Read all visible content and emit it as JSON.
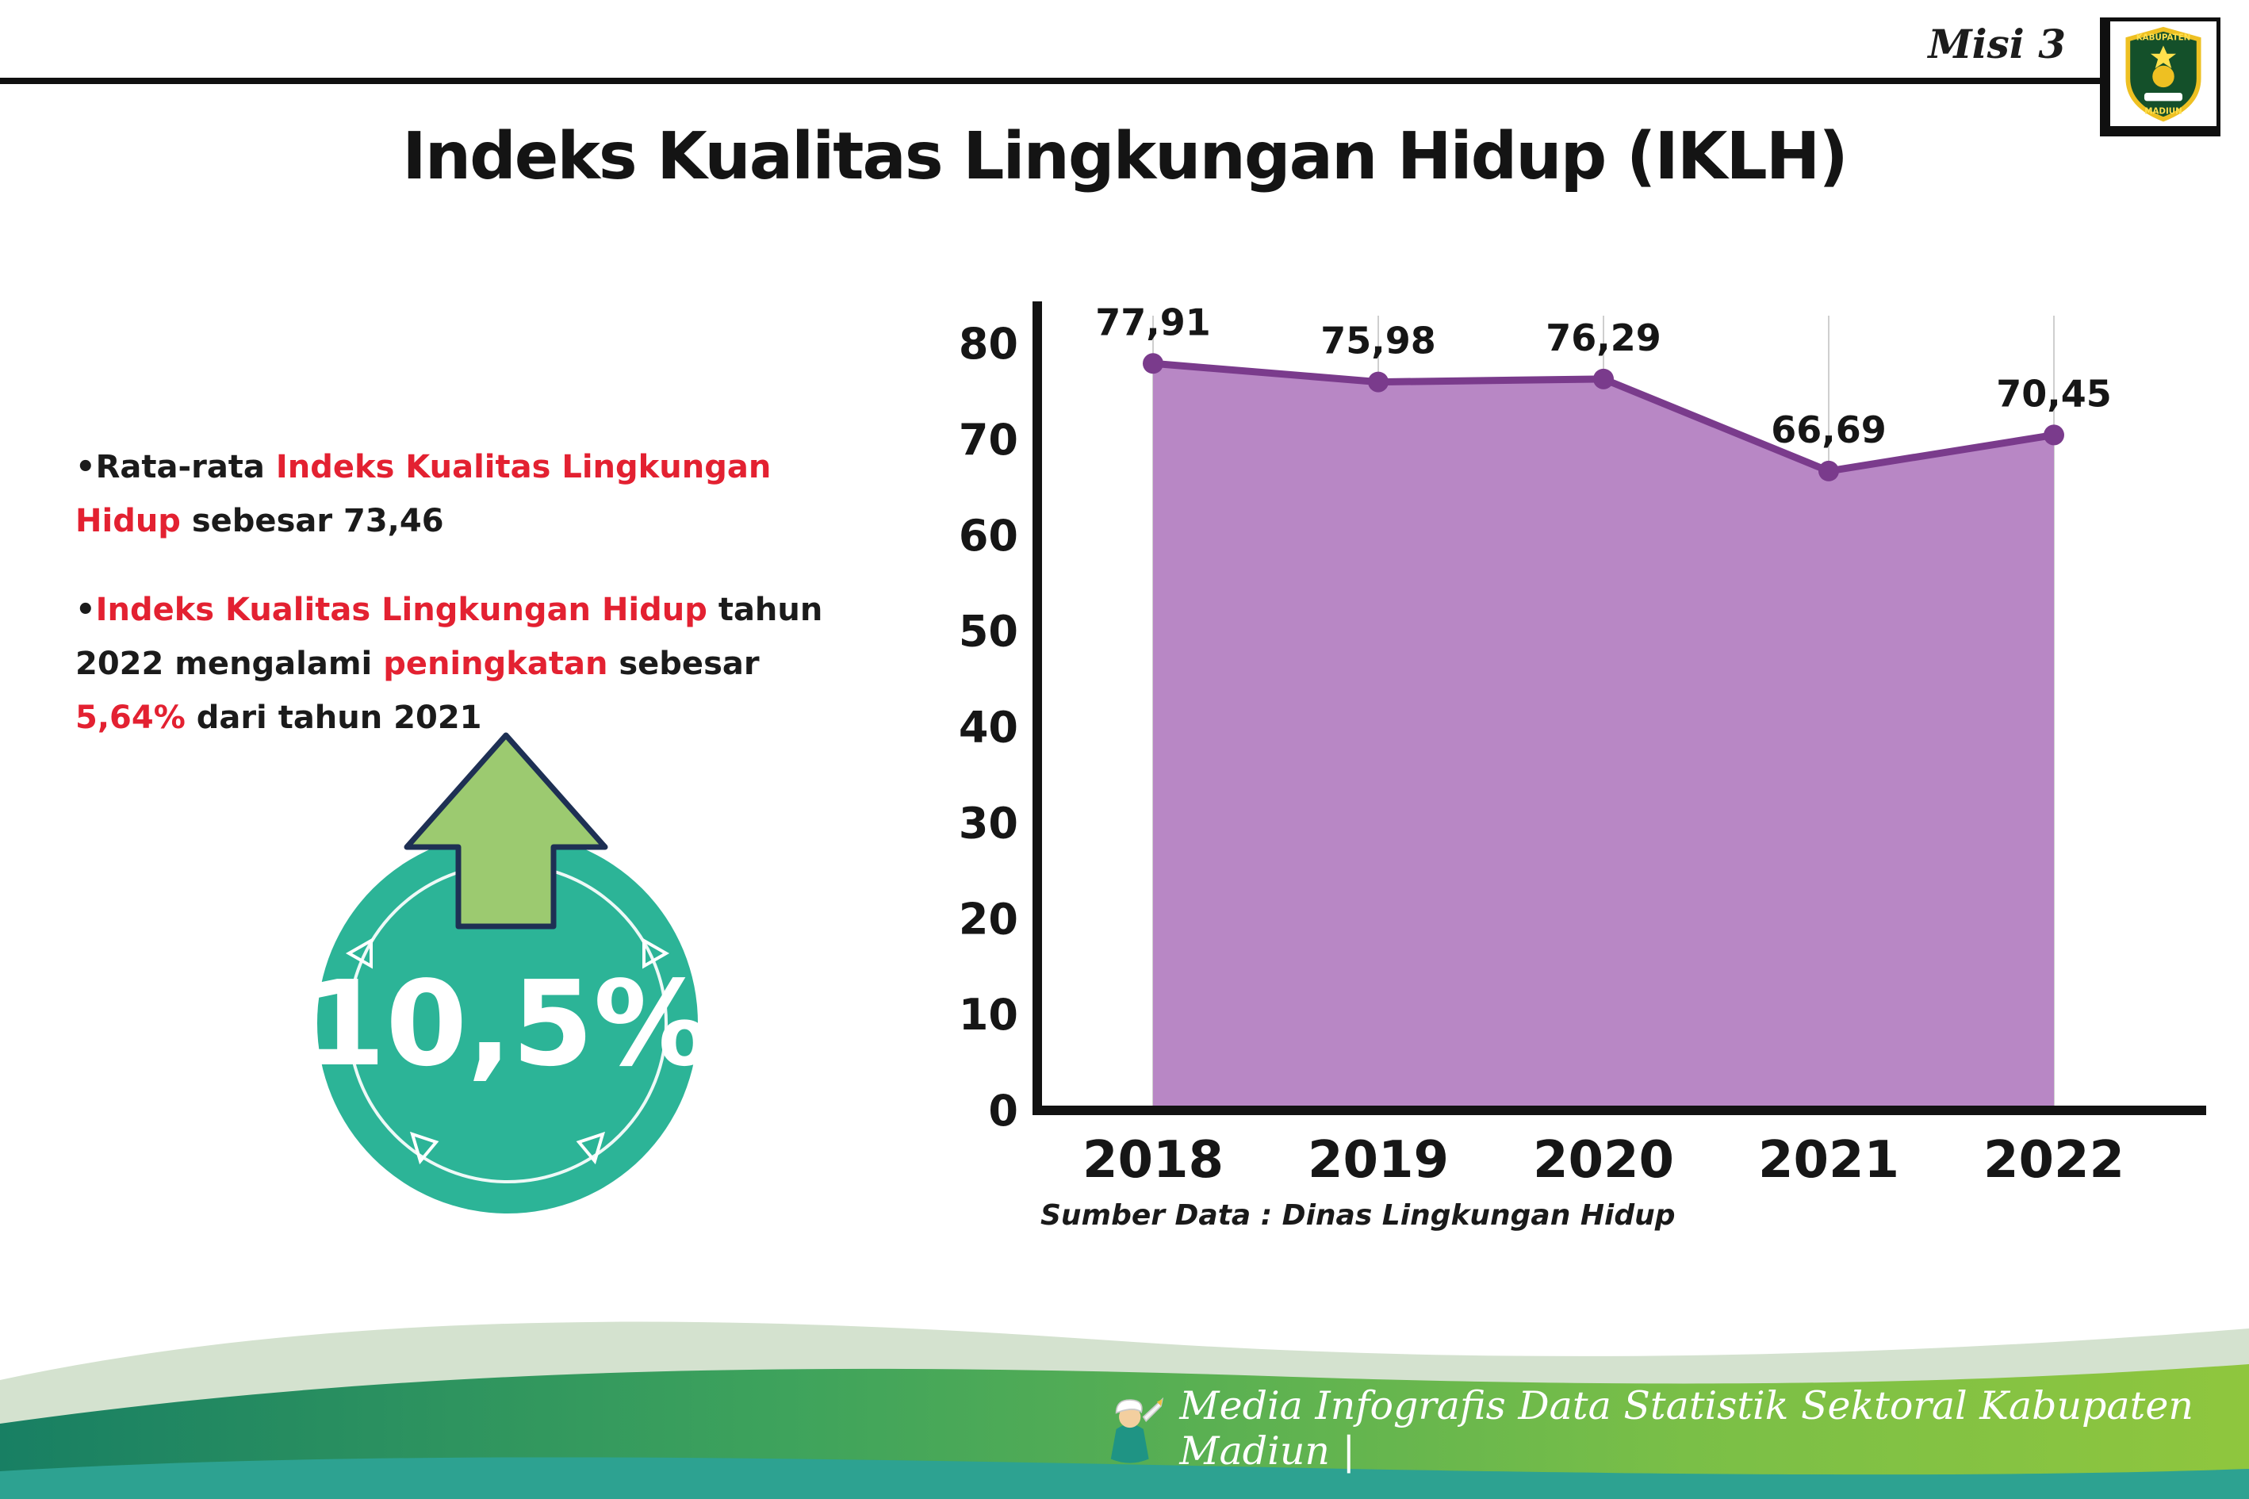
{
  "header": {
    "misi_label": "Misi 3",
    "title": "Indeks Kualitas Lingkungan Hidup (IKLH)",
    "logo": {
      "top": "KABUPATEN",
      "bottom": "MADIUN"
    }
  },
  "highlights": {
    "bullet_glyph": "•",
    "bullet1": {
      "pre": "Rata-rata ",
      "red": "Indeks Kualitas Lingkungan Hidup",
      "post": " sebesar 73,46"
    },
    "bullet2": {
      "red1": "Indeks Kualitas Lingkungan Hidup",
      "mid1": " tahun 2022 mengalami ",
      "red2": "peningkatan",
      "mid2": " sebesar ",
      "red3": "5,64%",
      "post": " dari tahun 2021"
    },
    "badge_value": "10,5%"
  },
  "chart_data": {
    "type": "area",
    "title": "Indeks Kualitas Lingkungan Hidup (IKLH)",
    "categories": [
      "2018",
      "2019",
      "2020",
      "2021",
      "2022"
    ],
    "values": [
      77.91,
      75.98,
      76.29,
      66.69,
      70.45
    ],
    "point_labels": [
      "77,91",
      "75,98",
      "76,29",
      "66,69",
      "70,45"
    ],
    "ylim": [
      0,
      80
    ],
    "yticks": [
      0,
      10,
      20,
      30,
      40,
      50,
      60,
      70,
      80
    ],
    "grid": "vertical",
    "legend": "none",
    "area_color": "#b887c5",
    "line_color": "#7a3b8c",
    "source": "Sumber Data : Dinas Lingkungan Hidup"
  },
  "colors": {
    "accent_red": "#e32131",
    "badge_teal": "#2cb497",
    "arrow_green": "#9cca70",
    "footer_teal": "#2da291"
  },
  "footer": {
    "credit": "Media Infografis Data Statistik Sektoral Kabupaten Madiun |"
  }
}
